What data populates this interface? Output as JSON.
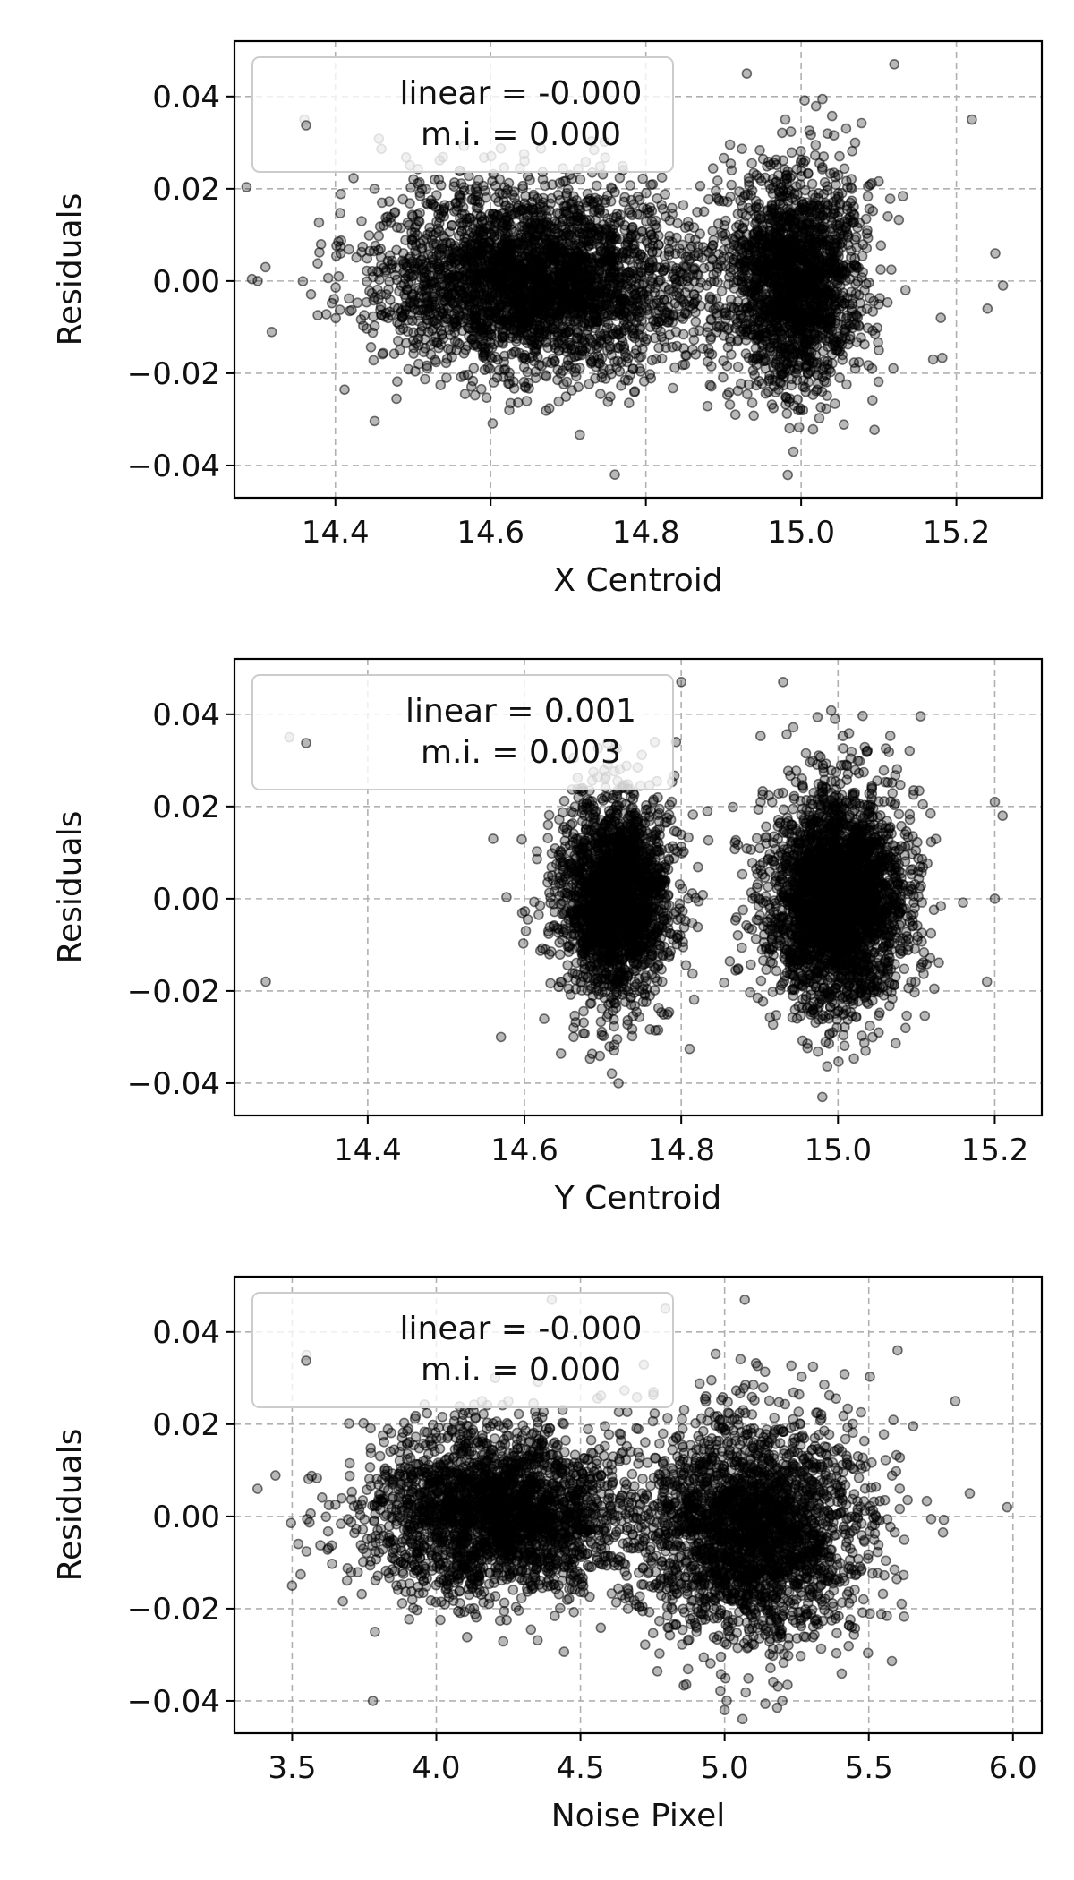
{
  "chart_data": [
    {
      "type": "scatter",
      "xlabel": "X Centroid",
      "ylabel": "Residuals",
      "xlim": [
        14.27,
        15.31
      ],
      "ylim": [
        -0.047,
        0.052
      ],
      "xticks": [
        "14.4",
        "14.6",
        "14.8",
        "15.0",
        "15.2"
      ],
      "yticks": [
        "0.04",
        "0.02",
        "0.00",
        "−0.02",
        "−0.04"
      ],
      "grid": true,
      "legend": {
        "position": "upper-left",
        "lines": [
          "linear = -0.000",
          "m.i. = 0.000"
        ]
      },
      "marker_color": "#000000",
      "clusters": [
        {
          "x_center": 14.66,
          "x_spread": 0.13,
          "y_center": 0.0,
          "y_spread": 0.01,
          "weight": 0.62
        },
        {
          "x_center": 14.99,
          "x_spread": 0.055,
          "y_center": 0.0,
          "y_spread": 0.012,
          "weight": 0.38
        }
      ],
      "outliers": [
        {
          "x": 14.3,
          "y": 0.0
        },
        {
          "x": 14.31,
          "y": 0.003
        },
        {
          "x": 14.36,
          "y": 0.035
        },
        {
          "x": 15.25,
          "y": 0.006
        },
        {
          "x": 15.26,
          "y": -0.001
        },
        {
          "x": 15.24,
          "y": -0.006
        },
        {
          "x": 15.22,
          "y": 0.035
        },
        {
          "x": 15.18,
          "y": -0.008
        },
        {
          "x": 15.17,
          "y": -0.017
        },
        {
          "x": 14.76,
          "y": -0.042
        },
        {
          "x": 14.93,
          "y": 0.045
        },
        {
          "x": 15.12,
          "y": 0.047
        }
      ]
    },
    {
      "type": "scatter",
      "xlabel": "Y Centroid",
      "ylabel": "Residuals",
      "xlim": [
        14.23,
        15.26
      ],
      "ylim": [
        -0.047,
        0.052
      ],
      "xticks": [
        "14.4",
        "14.6",
        "14.8",
        "15.0",
        "15.2"
      ],
      "yticks": [
        "0.04",
        "0.02",
        "0.00",
        "−0.02",
        "−0.04"
      ],
      "grid": true,
      "legend": {
        "position": "upper-left",
        "lines": [
          "linear = 0.001",
          "m.i. = 0.003"
        ]
      },
      "marker_color": "#000000",
      "clusters": [
        {
          "x_center": 14.715,
          "x_spread": 0.045,
          "y_center": 0.0,
          "y_spread": 0.011,
          "weight": 0.42
        },
        {
          "x_center": 15.0,
          "x_spread": 0.055,
          "y_center": 0.0,
          "y_spread": 0.012,
          "weight": 0.58
        }
      ],
      "outliers": [
        {
          "x": 14.27,
          "y": -0.018
        },
        {
          "x": 14.3,
          "y": 0.035
        },
        {
          "x": 14.56,
          "y": 0.013
        },
        {
          "x": 14.57,
          "y": -0.03
        },
        {
          "x": 14.8,
          "y": 0.047
        },
        {
          "x": 14.93,
          "y": 0.047
        },
        {
          "x": 15.2,
          "y": 0.021
        },
        {
          "x": 15.21,
          "y": 0.018
        },
        {
          "x": 15.2,
          "y": 0.0
        },
        {
          "x": 15.19,
          "y": -0.018
        },
        {
          "x": 14.98,
          "y": -0.043
        },
        {
          "x": 14.72,
          "y": -0.04
        }
      ]
    },
    {
      "type": "scatter",
      "xlabel": "Noise Pixel",
      "ylabel": "Residuals",
      "xlim": [
        3.3,
        6.1
      ],
      "ylim": [
        -0.047,
        0.052
      ],
      "xticks": [
        "3.5",
        "4.0",
        "4.5",
        "5.0",
        "5.5",
        "6.0"
      ],
      "yticks": [
        "0.04",
        "0.02",
        "0.00",
        "−0.02",
        "−0.04"
      ],
      "grid": true,
      "legend": {
        "position": "upper-left",
        "lines": [
          "linear = -0.000",
          "m.i. = 0.000"
        ]
      },
      "marker_color": "#000000",
      "clusters": [
        {
          "x_center": 4.2,
          "x_spread": 0.28,
          "y_center": 0.001,
          "y_spread": 0.009,
          "weight": 0.5
        },
        {
          "x_center": 5.1,
          "x_spread": 0.24,
          "y_center": -0.003,
          "y_spread": 0.012,
          "weight": 0.5
        }
      ],
      "outliers": [
        {
          "x": 3.38,
          "y": 0.006
        },
        {
          "x": 3.5,
          "y": -0.015
        },
        {
          "x": 3.55,
          "y": 0.035
        },
        {
          "x": 3.78,
          "y": -0.04
        },
        {
          "x": 5.98,
          "y": 0.002
        },
        {
          "x": 5.85,
          "y": 0.005
        },
        {
          "x": 5.8,
          "y": 0.025
        },
        {
          "x": 5.07,
          "y": 0.047
        },
        {
          "x": 5.0,
          "y": -0.042
        },
        {
          "x": 4.4,
          "y": 0.047
        },
        {
          "x": 5.2,
          "y": -0.04
        },
        {
          "x": 5.6,
          "y": 0.036
        }
      ]
    }
  ]
}
